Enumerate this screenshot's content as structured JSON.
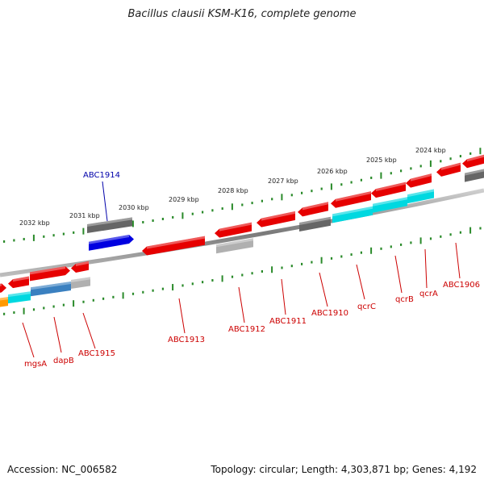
{
  "title": "Bacillus clausii KSM-K16, complete genome",
  "footer": {
    "accession": "Accession: NC_006582",
    "summary": "Topology: circular; Length: 4,303,871 bp; Genes: 4,192"
  },
  "colors": {
    "backbone": "#8a8a8a",
    "tick": "#2a8a2a",
    "gene_red": "#e60000",
    "gene_gray": "#666666",
    "gene_lightgray": "#b0b0b0",
    "gene_cyan": "#00d8e0",
    "gene_blue": "#0000e0",
    "gene_steel": "#3a80c0",
    "gene_orange": "#ff9900",
    "label_red": "#cc0000",
    "label_blue": "#0000aa"
  },
  "kbp_labels": [
    "2032 kbp",
    "2031 kbp",
    "2030 kbp",
    "2029 kbp",
    "2028 kbp",
    "2027 kbp",
    "2026 kbp",
    "2025 kbp",
    "2024 kbp"
  ],
  "gene_labels": [
    "ABC1914",
    "mgsA",
    "dapB",
    "ABC1915",
    "ABC1913",
    "ABC1912",
    "ABC1911",
    "ABC1910",
    "qcrC",
    "qcrB",
    "qcrA",
    "ABC1906"
  ]
}
